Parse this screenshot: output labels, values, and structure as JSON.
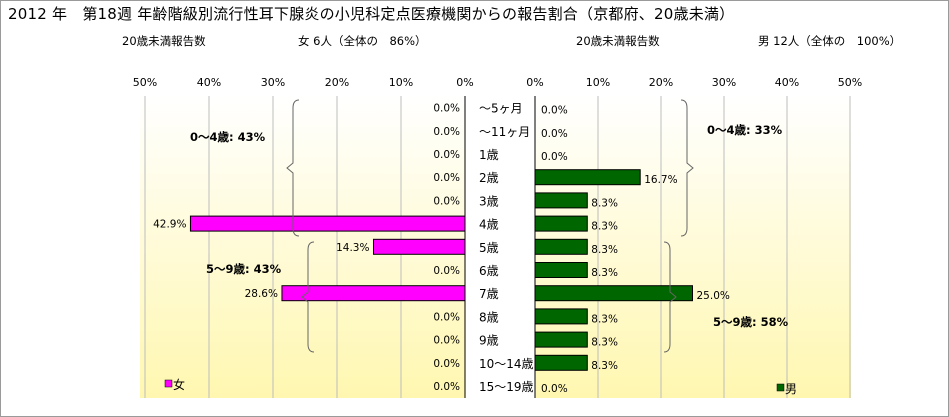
{
  "title": "2012 年　第18週 年齢階級別流行性耳下腺炎の小児科定点医療機関からの報告割合（京都府、20歳未満）",
  "left_panel": {
    "report_label": "20歳未満報告数",
    "count_text": "女 6人（全体の　86%）",
    "legend": "女",
    "bracket_labels": [
      "0～4歳: 43%",
      "5～9歳: 43%"
    ]
  },
  "right_panel": {
    "report_label": "20歳未満報告数",
    "count_text": "男 12人（全体の　100%）",
    "legend": "男",
    "bracket_labels": [
      "0～4歳: 33%",
      "5～9歳: 58%"
    ]
  },
  "colors": {
    "female": "#ff00ff",
    "male": "#006600",
    "bg_top": "#ffffff",
    "bg_bottom": "#fff7b0"
  },
  "chart_data": [
    {
      "type": "bar",
      "orientation": "horizontal",
      "direction": "right-to-left",
      "categories": [
        "～5ヶ月",
        "～11ヶ月",
        "1歳",
        "2歳",
        "3歳",
        "4歳",
        "5歳",
        "6歳",
        "7歳",
        "8歳",
        "9歳",
        "10～14歳",
        "15～19歳"
      ],
      "series": [
        {
          "name": "女",
          "values": [
            0,
            0,
            0,
            0,
            0,
            42.9,
            14.3,
            0,
            28.6,
            0,
            0,
            0,
            0
          ]
        }
      ],
      "xlim": [
        0,
        50
      ],
      "ticks": [
        "0%",
        "10%",
        "20%",
        "30%",
        "40%",
        "50%"
      ],
      "grid": true,
      "legend": "bottom-left"
    },
    {
      "type": "bar",
      "orientation": "horizontal",
      "direction": "left-to-right",
      "categories": [
        "～5ヶ月",
        "～11ヶ月",
        "1歳",
        "2歳",
        "3歳",
        "4歳",
        "5歳",
        "6歳",
        "7歳",
        "8歳",
        "9歳",
        "10～14歳",
        "15～19歳"
      ],
      "series": [
        {
          "name": "男",
          "values": [
            0,
            0,
            0,
            16.7,
            8.3,
            8.3,
            8.3,
            8.3,
            25.0,
            8.3,
            8.3,
            8.3,
            0
          ]
        }
      ],
      "xlim": [
        0,
        50
      ],
      "ticks": [
        "0%",
        "10%",
        "20%",
        "30%",
        "40%",
        "50%"
      ],
      "grid": true,
      "legend": "bottom-right"
    }
  ]
}
